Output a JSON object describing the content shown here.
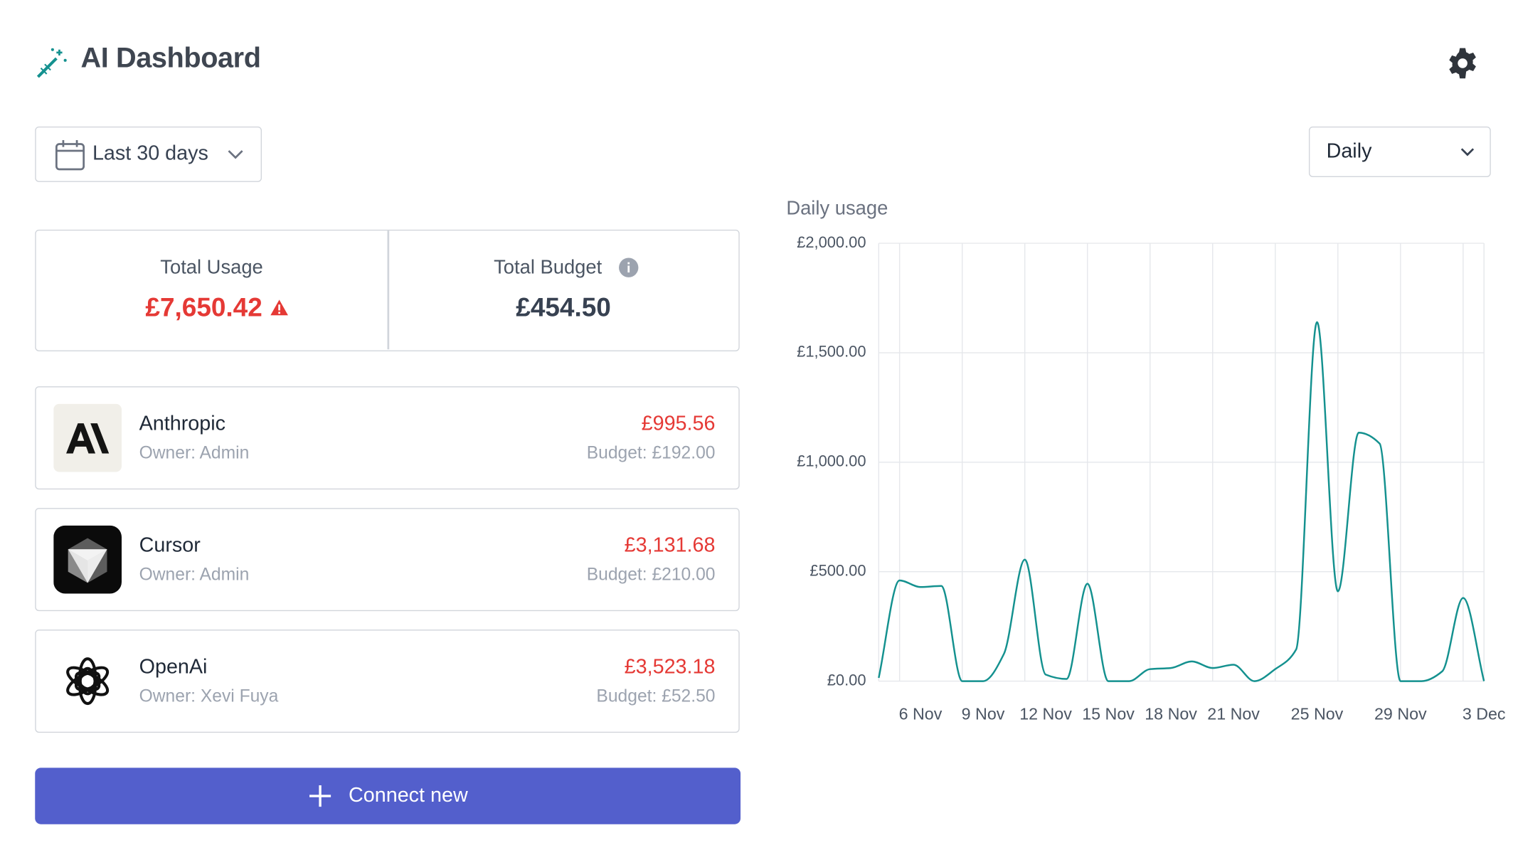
{
  "header": {
    "title": "AI Dashboard"
  },
  "date_range": "Last 30 days",
  "granularity": "Daily",
  "summary": {
    "total_usage_label": "Total Usage",
    "total_usage": "£7,650.42",
    "total_budget_label": "Total Budget",
    "total_budget": "£454.50"
  },
  "providers": [
    {
      "name": "Anthropic",
      "owner": "Owner: Admin",
      "usage": "£995.56",
      "budget": "Budget: £192.00"
    },
    {
      "name": "Cursor",
      "owner": "Owner: Admin",
      "usage": "£3,131.68",
      "budget": "Budget: £210.00"
    },
    {
      "name": "OpenAi",
      "owner": "Owner: Xevi Fuya",
      "usage": "£3,523.18",
      "budget": "Budget: £52.50"
    }
  ],
  "button": "Connect new",
  "chart_data": {
    "type": "line",
    "title": "Daily usage",
    "categories": [
      null,
      null,
      "6 Nov",
      null,
      null,
      "9 Nov",
      null,
      null,
      "12 Nov",
      null,
      null,
      "15 Nov",
      null,
      null,
      "18 Nov",
      null,
      null,
      "21 Nov",
      null,
      null,
      null,
      "25 Nov",
      null,
      null,
      null,
      "29 Nov",
      null,
      null,
      null,
      "3 Dec"
    ],
    "values": [
      15,
      460,
      430,
      435,
      0,
      0,
      125,
      555,
      30,
      10,
      445,
      0,
      0,
      55,
      60,
      90,
      60,
      75,
      0,
      55,
      145,
      1640,
      410,
      1135,
      1085,
      0,
      0,
      45,
      380,
      0
    ],
    "color": "#14918f",
    "ylim": [
      0,
      2000
    ],
    "yticks": [
      {
        "value": 0,
        "label": "£0.00"
      },
      {
        "value": 500,
        "label": "£500.00"
      },
      {
        "value": 1000,
        "label": "£1,000.00"
      },
      {
        "value": 1500,
        "label": "£1,500.00"
      },
      {
        "value": 2000,
        "label": "£2,000.00"
      }
    ],
    "grid": true
  }
}
